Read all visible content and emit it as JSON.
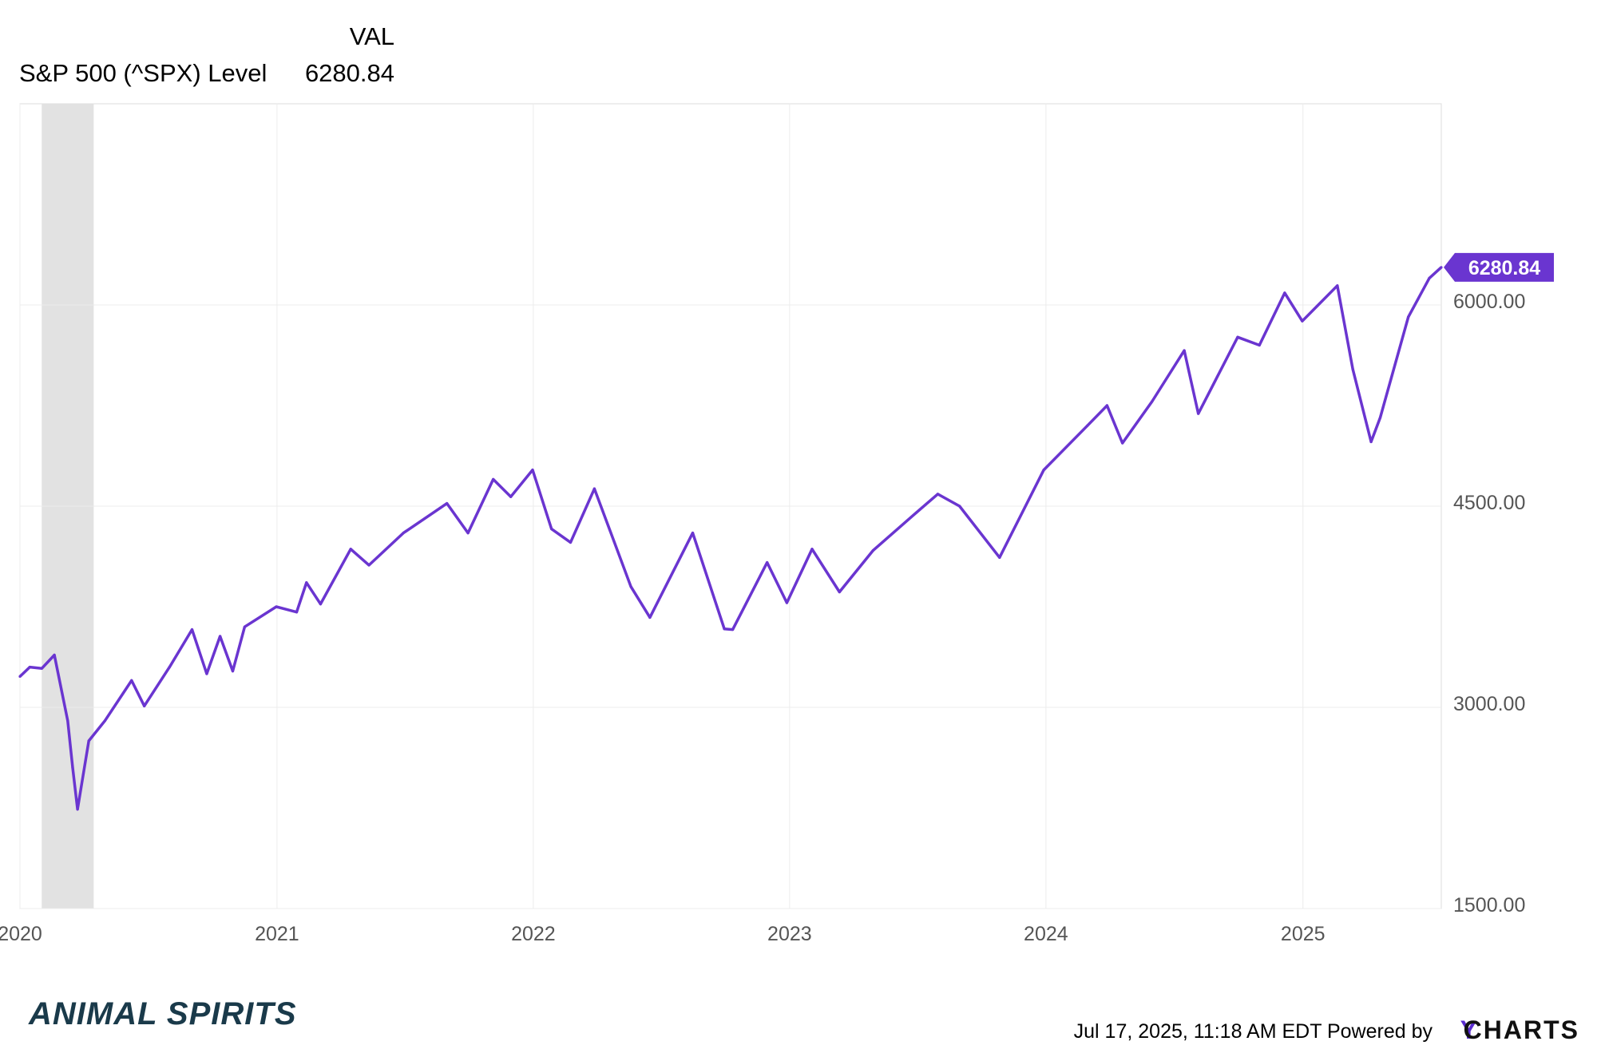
{
  "legend": {
    "header": "VAL",
    "series_name": "S&P 500 (^SPX) Level",
    "series_value": "6280.84"
  },
  "footer": {
    "brand": "ANIMAL SPIRITS",
    "timestamp": "Jul 17, 2025, 11:18 AM EDT Powered by",
    "logo_y": "Y",
    "logo_rest": "CHARTS"
  },
  "colors": {
    "line": "#6a35d0",
    "recession_band": "#e2e2e2",
    "grid": "#ececec"
  },
  "chart_data": {
    "type": "line",
    "title": "",
    "xlabel": "",
    "ylabel": "",
    "x_ticks": [
      "2020",
      "2021",
      "2022",
      "2023",
      "2024",
      "2025"
    ],
    "y_ticks": [
      "1500.00",
      "3000.00",
      "4500.00",
      "6000.00"
    ],
    "xlim": [
      "2020-01-01",
      "2025-07-17"
    ],
    "ylim": [
      1500,
      7500
    ],
    "grid": true,
    "last_value_label": "6280.84",
    "shaded_periods": [
      {
        "start": "2020-02-01",
        "end": "2020-04-15"
      }
    ],
    "series": [
      {
        "name": "S&P 500 (^SPX) Level",
        "x": [
          "2020-01-01",
          "2020-01-15",
          "2020-02-01",
          "2020-02-19",
          "2020-03-09",
          "2020-03-16",
          "2020-03-23",
          "2020-04-08",
          "2020-05-01",
          "2020-06-08",
          "2020-06-26",
          "2020-08-01",
          "2020-09-02",
          "2020-09-23",
          "2020-10-12",
          "2020-10-30",
          "2020-11-16",
          "2020-12-31",
          "2021-01-29",
          "2021-02-12",
          "2021-03-04",
          "2021-04-16",
          "2021-05-12",
          "2021-06-30",
          "2021-08-31",
          "2021-09-30",
          "2021-11-05",
          "2021-11-30",
          "2021-12-31",
          "2022-01-27",
          "2022-02-23",
          "2022-03-29",
          "2022-05-20",
          "2022-06-16",
          "2022-08-16",
          "2022-09-30",
          "2022-10-12",
          "2022-11-30",
          "2022-12-28",
          "2023-02-02",
          "2023-03-13",
          "2023-04-30",
          "2023-06-30",
          "2023-07-31",
          "2023-08-31",
          "2023-10-27",
          "2023-12-29",
          "2024-02-29",
          "2024-03-28",
          "2024-04-19",
          "2024-05-31",
          "2024-07-16",
          "2024-08-05",
          "2024-09-30",
          "2024-10-31",
          "2024-12-06",
          "2024-12-31",
          "2025-02-19",
          "2025-03-13",
          "2025-04-08",
          "2025-04-21",
          "2025-05-31",
          "2025-06-30",
          "2025-07-17"
        ],
        "values": [
          3230,
          3300,
          3290,
          3390,
          2900,
          2550,
          2240,
          2750,
          2900,
          3200,
          3010,
          3300,
          3580,
          3250,
          3530,
          3270,
          3600,
          3750,
          3710,
          3930,
          3770,
          4180,
          4060,
          4300,
          4520,
          4300,
          4700,
          4570,
          4770,
          4330,
          4230,
          4630,
          3900,
          3670,
          4300,
          3585,
          3580,
          4080,
          3780,
          4180,
          3860,
          4170,
          4450,
          4590,
          4500,
          4117,
          4770,
          5100,
          5250,
          4970,
          5280,
          5660,
          5190,
          5760,
          5700,
          6090,
          5880,
          6144,
          5520,
          4980,
          5160,
          5910,
          6200,
          6280.84
        ]
      }
    ]
  }
}
